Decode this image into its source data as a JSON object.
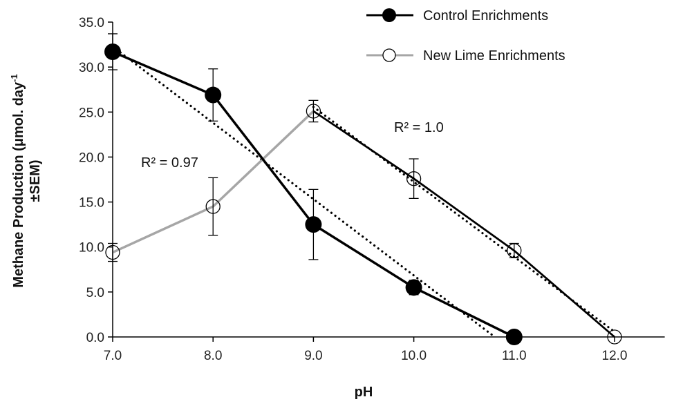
{
  "chart_data": {
    "type": "line",
    "xlabel": "pH",
    "ylabel": "Methane Production (μmol. day⁻¹ ±SEM)",
    "ylabel_line1": "Methane Production (μmol. day",
    "ylabel_sup": "-1",
    "ylabel_line2": "±SEM)",
    "xlim": [
      7.0,
      12.5
    ],
    "ylim": [
      0,
      35
    ],
    "x_ticks": [
      "7.0",
      "8.0",
      "9.0",
      "10.0",
      "11.0",
      "12.0"
    ],
    "y_ticks": [
      "0.0",
      "5.0",
      "10.0",
      "15.0",
      "20.0",
      "25.0",
      "30.0",
      "35.0"
    ],
    "grid": false,
    "legend_position": "top-right",
    "series": [
      {
        "name": "Control Enrichments",
        "marker": "filled-circle",
        "color": "#000000",
        "x": [
          7,
          8,
          9,
          10,
          11
        ],
        "y": [
          31.7,
          26.9,
          12.5,
          5.5,
          0.0
        ],
        "error": [
          2.0,
          2.9,
          3.9,
          0.8,
          0.0
        ],
        "trendline": "linear",
        "r2_label": "R² = 0.97"
      },
      {
        "name": "New Lime Enrichments",
        "marker": "open-circle",
        "color": "#a6a6a6",
        "color_after_peak": "#000000",
        "x": [
          7,
          8,
          9,
          10,
          11,
          12
        ],
        "y": [
          9.4,
          14.5,
          25.1,
          17.6,
          9.6,
          0.0
        ],
        "error": [
          1.0,
          3.2,
          1.2,
          2.2,
          0.8,
          0.0
        ],
        "trendline": "linear (pH 9.0–12.0)",
        "r2_label": "R² = 1.0"
      }
    ]
  }
}
